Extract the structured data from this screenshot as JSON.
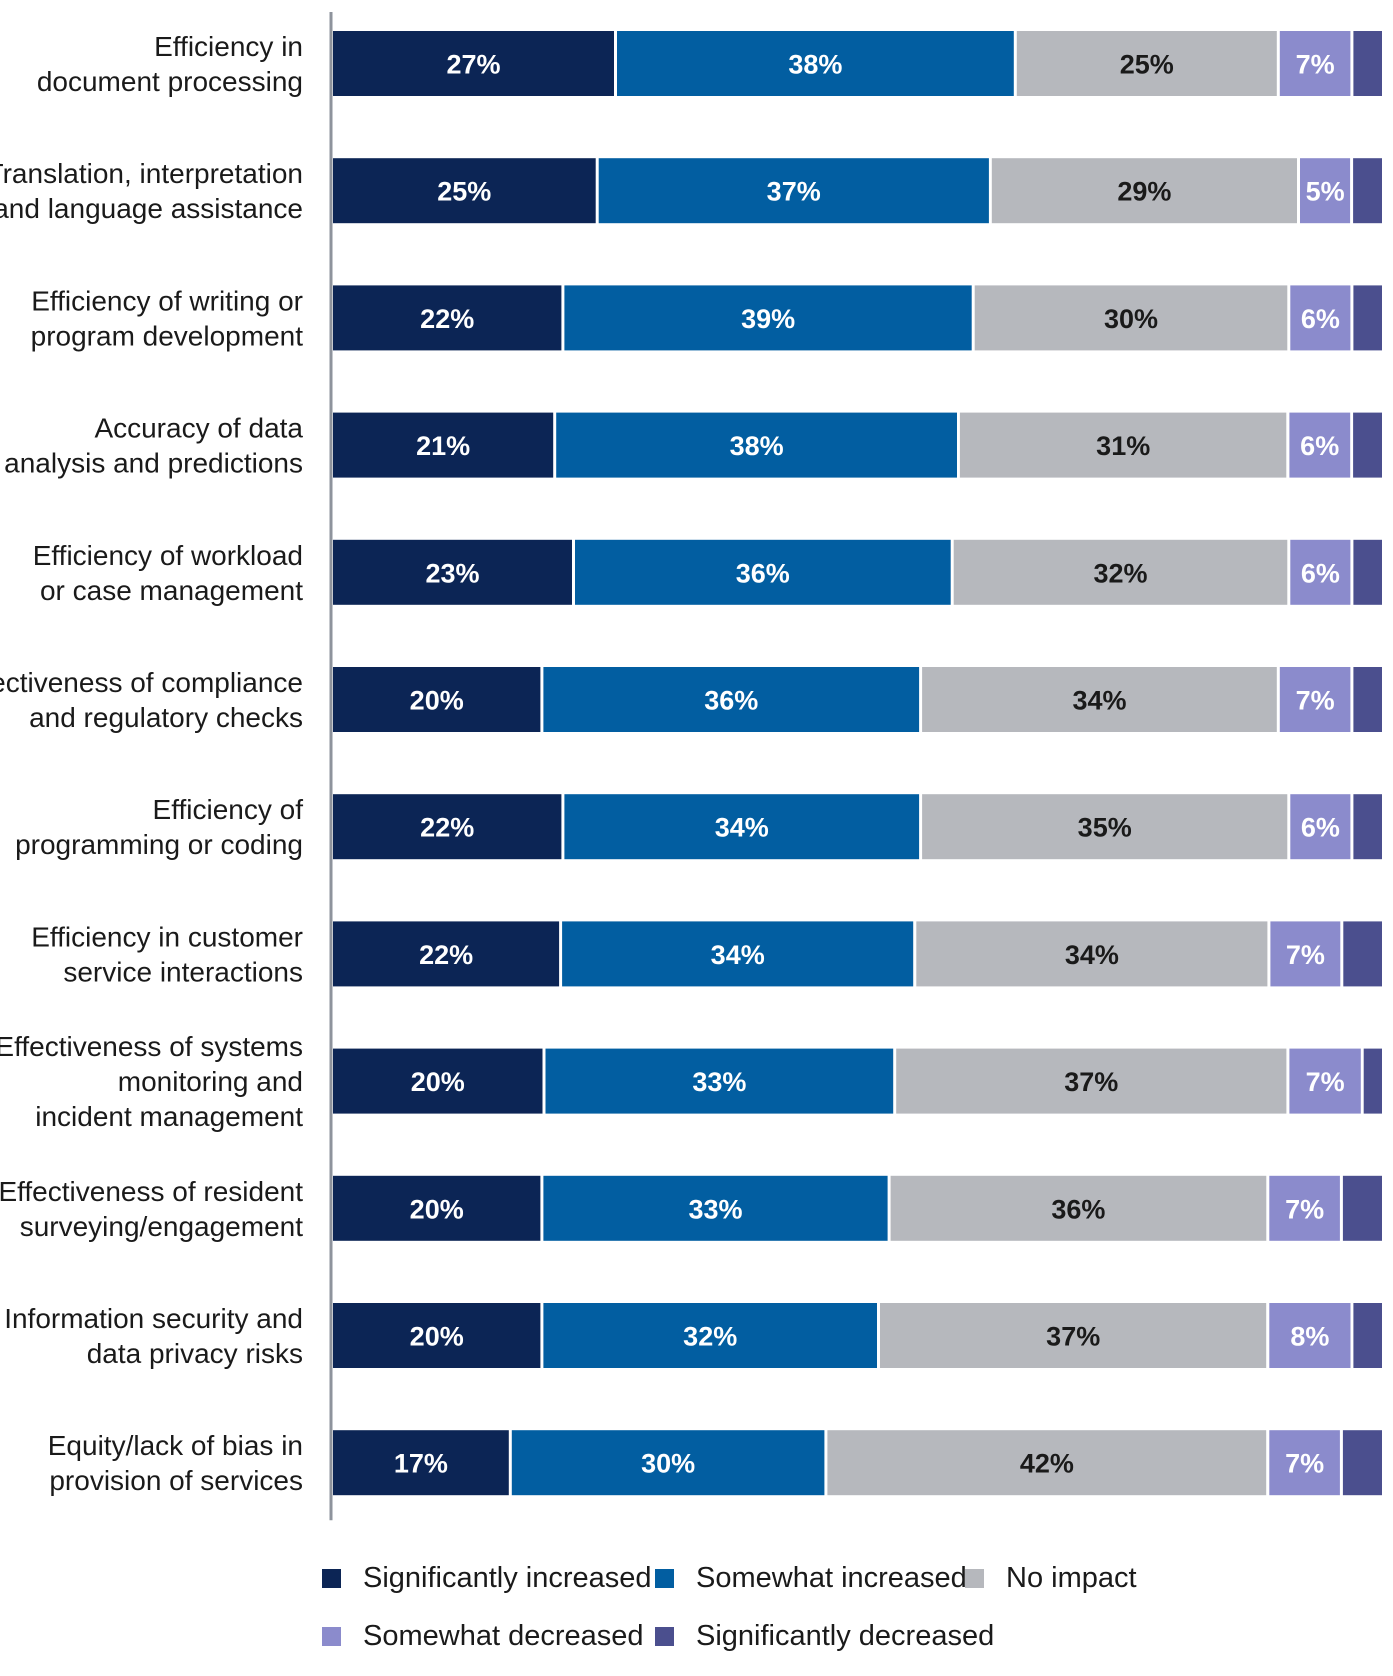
{
  "chart_data": {
    "type": "bar",
    "orientation": "horizontal",
    "stacked": true,
    "title": "",
    "xlabel": "",
    "ylabel": "",
    "xlim": [
      0,
      100
    ],
    "legend_position": "bottom",
    "grid": false,
    "categories": [
      [
        "Efficiency in",
        "document processing"
      ],
      [
        "Translation, interpretation",
        "and language assistance"
      ],
      [
        "Efficiency of writing or",
        "program development"
      ],
      [
        "Accuracy of data",
        "analysis and predictions"
      ],
      [
        "Efficiency of workload",
        "or case management"
      ],
      [
        "Effectiveness of compliance",
        "and regulatory checks"
      ],
      [
        "Efficiency of",
        "programming or coding"
      ],
      [
        "Efficiency in customer",
        "service interactions"
      ],
      [
        "Effectiveness of systems",
        "monitoring and",
        "incident management"
      ],
      [
        "Effectiveness of resident",
        "surveying/engagement"
      ],
      [
        "Information security and",
        "data privacy risks"
      ],
      [
        "Equity/lack of bias in",
        "provision of services"
      ]
    ],
    "series": [
      {
        "name": "Significantly increased",
        "color": "#0c2555",
        "label_color": "#ffffff",
        "shown_labels": true,
        "values": [
          27,
          25,
          22,
          21,
          23,
          20,
          22,
          22,
          20,
          20,
          20,
          17
        ]
      },
      {
        "name": "Somewhat increased",
        "color": "#025ea1",
        "label_color": "#ffffff",
        "shown_labels": true,
        "values": [
          38,
          37,
          39,
          38,
          36,
          36,
          34,
          34,
          33,
          33,
          32,
          30
        ]
      },
      {
        "name": "No impact",
        "color": "#b6b8bd",
        "label_color": "#1a1a1a",
        "shown_labels": true,
        "values": [
          25,
          29,
          30,
          31,
          32,
          34,
          35,
          34,
          37,
          36,
          37,
          42
        ]
      },
      {
        "name": "Somewhat decreased",
        "color": "#8b8bcc",
        "label_color": "#ffffff",
        "shown_labels": true,
        "values": [
          7,
          5,
          6,
          6,
          6,
          7,
          6,
          7,
          7,
          7,
          8,
          7
        ]
      },
      {
        "name": "Significantly decreased",
        "color": "#4b4f8e",
        "label_color": "#ffffff",
        "shown_labels": false,
        "values": [
          3,
          3,
          3,
          3,
          3,
          3,
          3,
          4,
          2,
          4,
          3,
          4
        ]
      }
    ]
  }
}
